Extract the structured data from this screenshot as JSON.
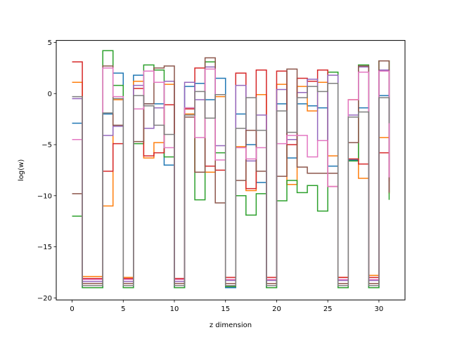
{
  "chart_data": {
    "type": "line",
    "step": "post",
    "title": "",
    "xlabel": "z dimension",
    "ylabel": "log(w)",
    "xlim": [
      -1.55,
      32.55
    ],
    "ylim": [
      -20.2,
      5.2
    ],
    "xticks": [
      0,
      5,
      10,
      15,
      20,
      25,
      30
    ],
    "yticks": [
      -20,
      -15,
      -10,
      -5,
      0,
      5
    ],
    "grid": false,
    "legend": false,
    "x": [
      0,
      1,
      2,
      3,
      4,
      5,
      6,
      7,
      8,
      9,
      10,
      11,
      12,
      13,
      14,
      15,
      16,
      17,
      18,
      19,
      20,
      21,
      22,
      23,
      24,
      25,
      26,
      27,
      28,
      29,
      30,
      31
    ],
    "series": [
      {
        "color": "#1f77b4",
        "values": [
          -2.9,
          -19.0,
          -19.0,
          -2.0,
          2.0,
          -19.0,
          1.8,
          -1.0,
          -1.0,
          -7.0,
          -19.0,
          0.7,
          1.0,
          -0.6,
          1.5,
          -19.0,
          -2.0,
          -5.0,
          -8.7,
          -19.0,
          -1.0,
          -6.3,
          -1.0,
          -1.2,
          -1.4,
          -7.1,
          -19.0,
          -6.5,
          -1.4,
          -19.0,
          -0.2,
          -6.7
        ]
      },
      {
        "color": "#ff7f0e",
        "values": [
          1.1,
          -17.9,
          -17.9,
          -11.0,
          -0.6,
          -18.0,
          1.2,
          -6.3,
          -4.8,
          0.9,
          -18.2,
          -2.0,
          -7.7,
          -7.7,
          -0.3,
          -18.2,
          -5.2,
          -9.5,
          -0.1,
          -18.2,
          0.9,
          -8.9,
          0.7,
          -1.7,
          1.1,
          -6.1,
          -18.0,
          -0.6,
          -8.3,
          -17.8,
          -4.3,
          -9.8
        ]
      },
      {
        "color": "#2ca02c",
        "values": [
          -12.0,
          -19.0,
          -19.0,
          4.2,
          0.8,
          -19.0,
          -4.9,
          2.8,
          2.3,
          -6.2,
          -19.0,
          -1.4,
          -10.4,
          3.1,
          -5.8,
          -18.9,
          -10.0,
          -11.9,
          -9.8,
          -19.0,
          -10.5,
          -8.5,
          -9.7,
          -9.0,
          -11.5,
          2.1,
          -19.0,
          -6.6,
          2.8,
          -19.0,
          3.2,
          -10.4
        ]
      },
      {
        "color": "#d62728",
        "values": [
          3.1,
          -18.1,
          -18.1,
          -7.6,
          -4.9,
          -18.1,
          0.5,
          -6.1,
          -5.8,
          -1.1,
          -18.1,
          -1.5,
          2.5,
          -7.1,
          -7.5,
          -18.0,
          2.0,
          -9.3,
          2.3,
          -18.0,
          2.2,
          -5.0,
          1.5,
          1.2,
          2.3,
          -9.1,
          -18.0,
          -6.4,
          -6.9,
          -18.0,
          -5.8,
          -8.6
        ]
      },
      {
        "color": "#9467bd",
        "values": [
          -0.5,
          -18.4,
          -18.4,
          -4.1,
          -3.2,
          -18.4,
          0.8,
          -3.4,
          -1.4,
          1.2,
          -18.4,
          1.1,
          -0.6,
          2.6,
          -5.1,
          -18.3,
          0.8,
          -6.6,
          -2.1,
          -18.3,
          0.4,
          -4.5,
          0.1,
          1.4,
          -4.6,
          1.8,
          -18.3,
          -2.1,
          2.6,
          -18.3,
          2.3,
          -9.6
        ]
      },
      {
        "color": "#8c564b",
        "values": [
          -9.8,
          -18.6,
          -18.6,
          2.7,
          -3.1,
          -18.6,
          -4.7,
          -1.0,
          2.5,
          2.7,
          -18.6,
          -2.3,
          -7.7,
          3.5,
          -10.7,
          -18.6,
          -8.5,
          -3.6,
          -7.6,
          -18.6,
          -8.1,
          2.4,
          -7.2,
          -7.8,
          -7.8,
          -7.8,
          -18.6,
          -4.8,
          2.7,
          -18.6,
          3.2,
          -9.7
        ]
      },
      {
        "color": "#e377c2",
        "values": [
          -4.5,
          -18.2,
          -18.2,
          2.5,
          -0.3,
          -18.2,
          -1.5,
          2.2,
          1.1,
          -5.3,
          -18.2,
          -1.4,
          -4.3,
          2.4,
          -6.5,
          -18.2,
          -5.3,
          -6.4,
          -5.3,
          -18.2,
          -4.9,
          -4.1,
          -4.1,
          -6.2,
          -4.6,
          -9.1,
          -18.2,
          -0.6,
          2.1,
          -18.2,
          2.2,
          -8.2
        ]
      },
      {
        "color": "#7f7f7f",
        "values": [
          -0.3,
          -18.8,
          -18.8,
          -1.9,
          -0.5,
          -18.8,
          -0.2,
          -1.2,
          -3.1,
          -4.0,
          -18.8,
          -2.1,
          0.2,
          -2.4,
          -0.1,
          -18.8,
          -3.4,
          -0.4,
          -3.6,
          -18.8,
          -1.7,
          -3.8,
          -0.4,
          0.7,
          0.2,
          1.0,
          -18.8,
          -2.3,
          -1.8,
          -18.8,
          -0.4,
          -2.9
        ]
      }
    ]
  }
}
